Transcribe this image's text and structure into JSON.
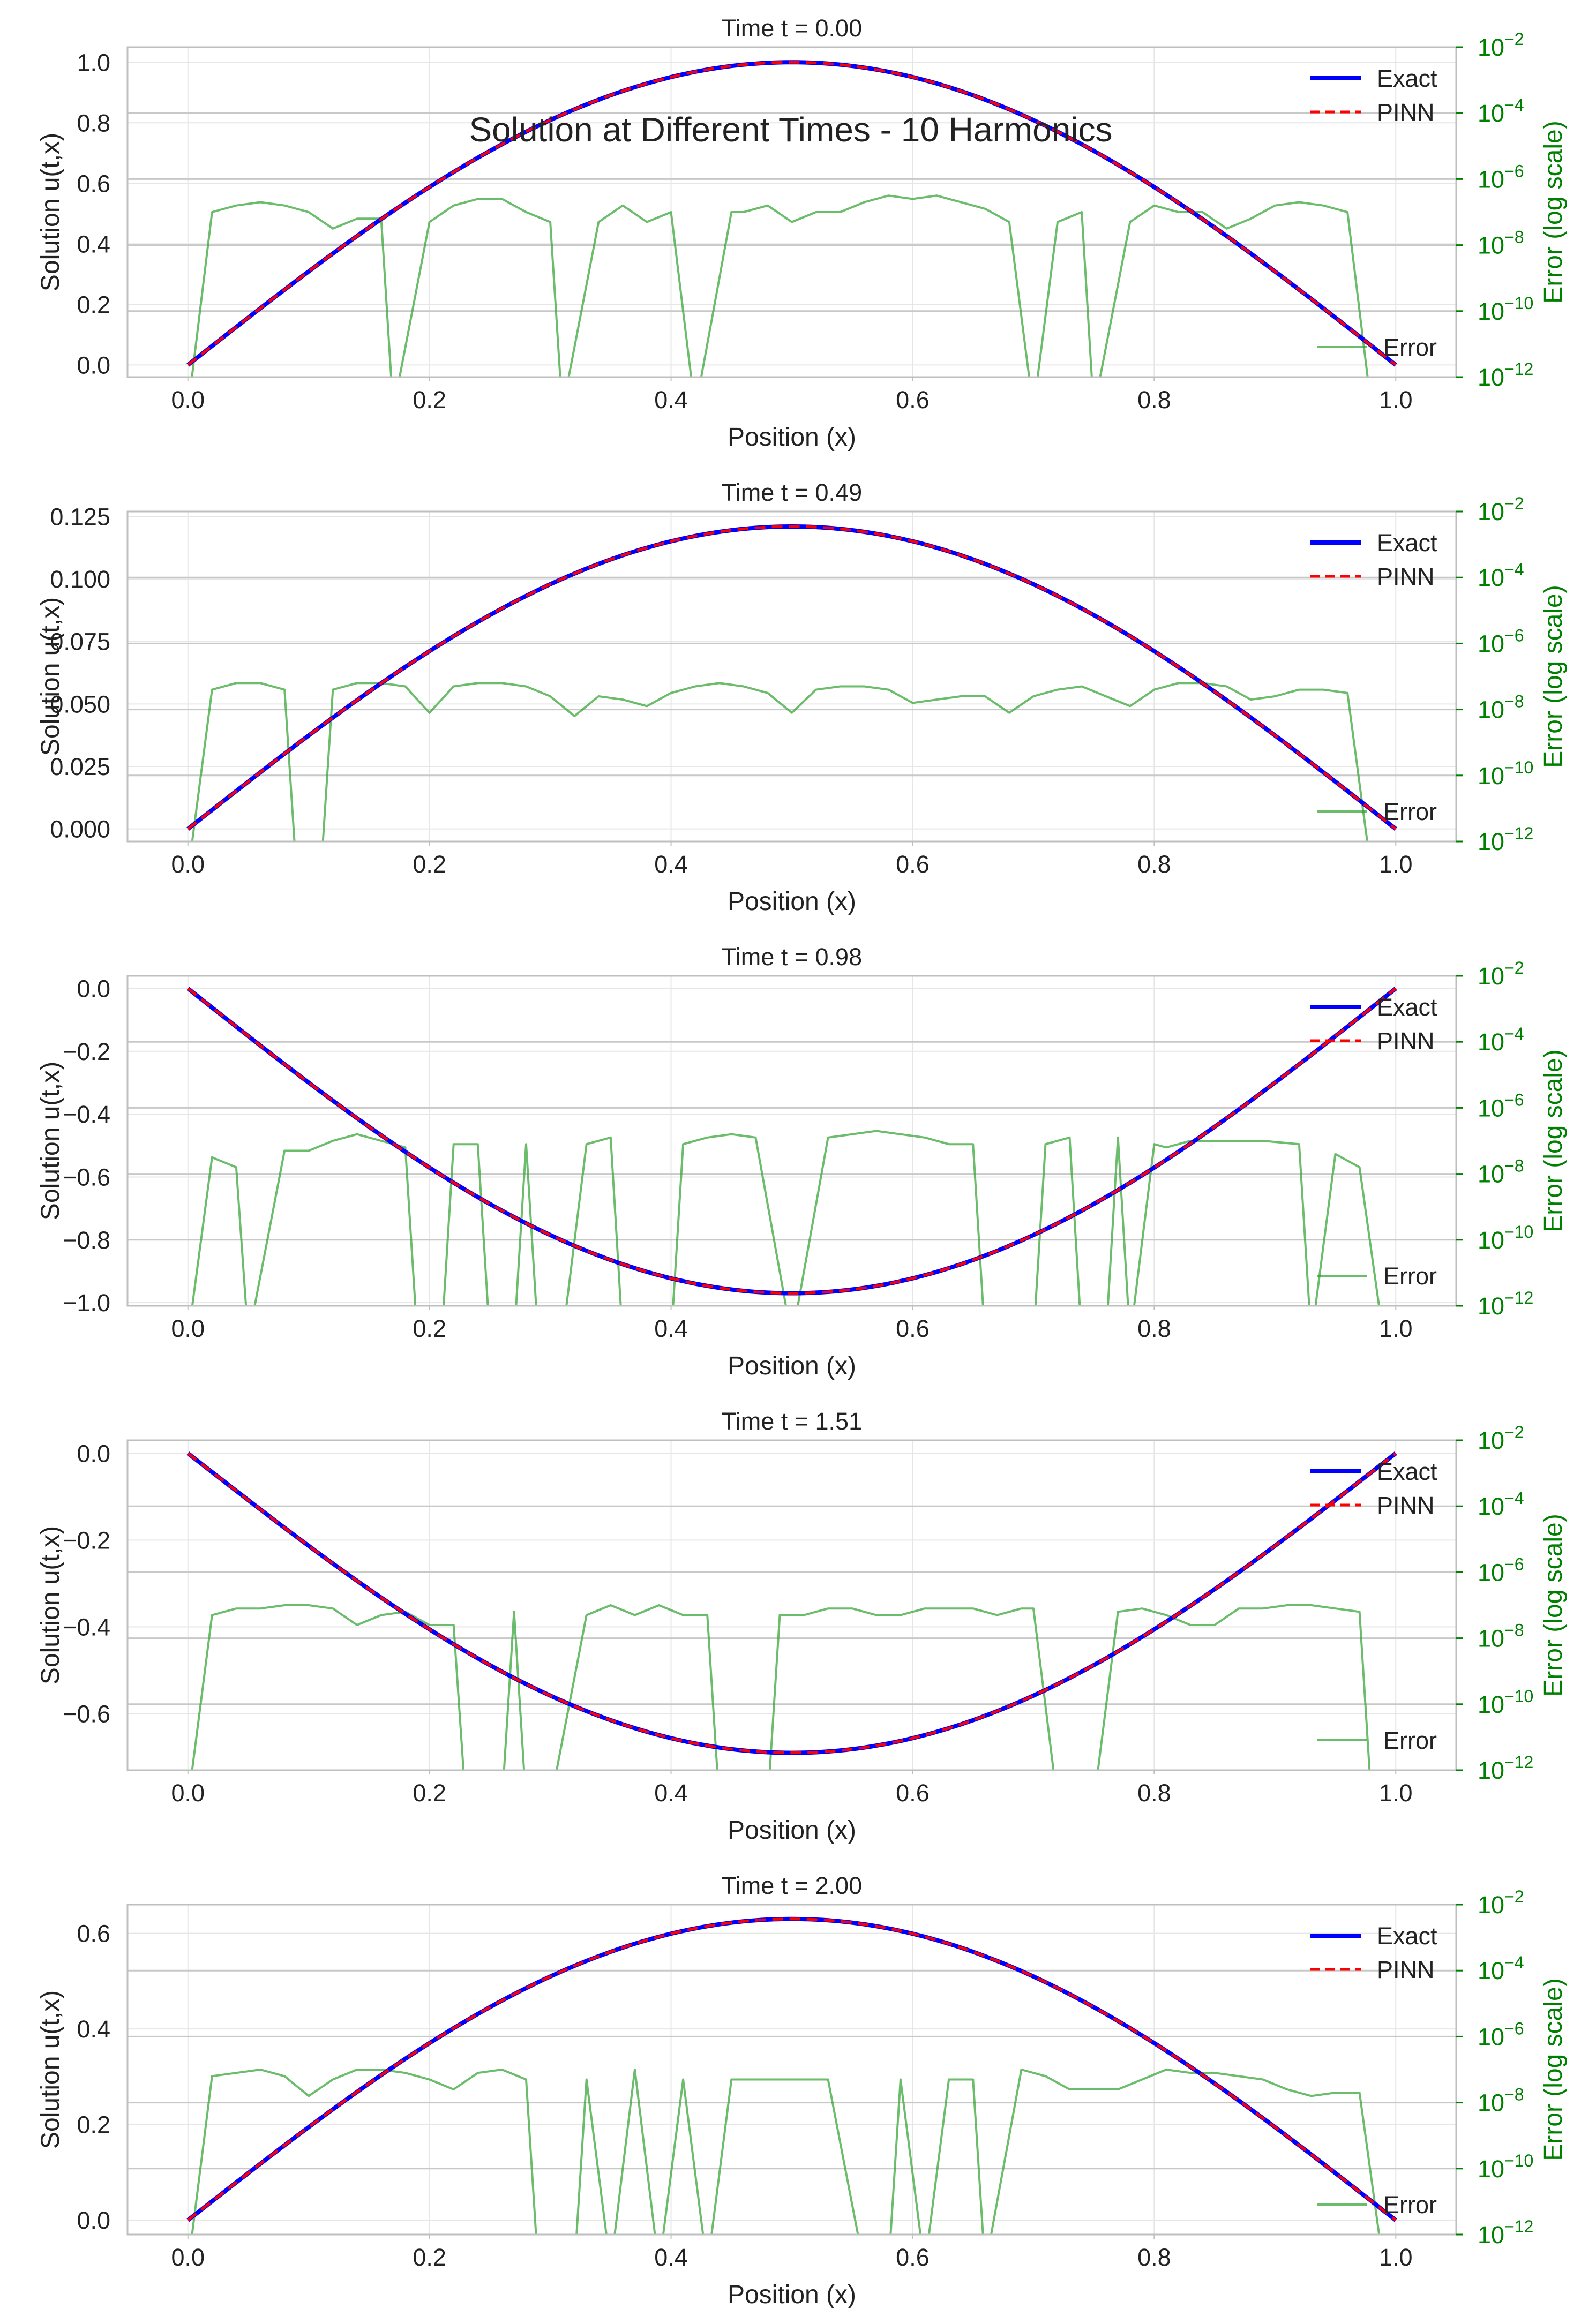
{
  "figure": {
    "suptitle": "Solution at Different Times - 10 Harmonics"
  },
  "colors": {
    "exact": "#0000ff",
    "pinn": "#ff0000",
    "error": "#2ca02c",
    "right_axis": "#008000",
    "grid": "#e6e6e6",
    "hgrid": "#c8c8c8",
    "frame": "#bfbfbf",
    "text": "#222222"
  },
  "legend": {
    "exact": "Exact",
    "pinn": "PINN",
    "error": "Error"
  },
  "chart_data": [
    {
      "type": "line",
      "title": "Time t = 0.00",
      "xlabel": "Position (x)",
      "ylabel": "Solution u(t,x)",
      "y2label": "Error (log scale)",
      "xlim": [
        -0.05,
        1.05
      ],
      "xticks": [
        "0.0",
        "0.2",
        "0.4",
        "0.6",
        "0.8",
        "1.0"
      ],
      "ylim": [
        -0.04,
        1.05
      ],
      "yticks": [
        0.0,
        0.2,
        0.4,
        0.6,
        0.8,
        1.0
      ],
      "ytick_labels": [
        "0.0",
        "0.2",
        "0.4",
        "0.6",
        "0.8",
        "1.0"
      ],
      "y2lim_exp": [
        -12,
        -2
      ],
      "y2ticks_exp": [
        -2,
        -4,
        -6,
        -8,
        -10,
        -12
      ],
      "grid": true,
      "legend_placement": "top-right (Exact, PINN), bottom-right (Error)",
      "series": [
        {
          "name": "Exact",
          "function": "A*sin(pi*x)",
          "amplitude": 1.0
        },
        {
          "name": "PINN",
          "function": "A*sin(pi*x)",
          "amplitude": 1.0,
          "style": "dashed"
        },
        {
          "name": "Error",
          "axis": "right",
          "x": [
            0.0,
            0.02,
            0.04,
            0.06,
            0.08,
            0.1,
            0.12,
            0.14,
            0.16,
            0.17,
            0.2,
            0.22,
            0.24,
            0.26,
            0.28,
            0.3,
            0.31,
            0.34,
            0.36,
            0.38,
            0.4,
            0.42,
            0.45,
            0.46,
            0.48,
            0.5,
            0.52,
            0.54,
            0.56,
            0.58,
            0.6,
            0.62,
            0.64,
            0.66,
            0.68,
            0.7,
            0.72,
            0.74,
            0.75,
            0.78,
            0.8,
            0.82,
            0.84,
            0.86,
            0.88,
            0.9,
            0.92,
            0.94,
            0.96,
            0.98,
            1.0
          ],
          "log10_error": [
            -13,
            -7.0,
            -6.8,
            -6.7,
            -6.8,
            -7.0,
            -7.5,
            -7.2,
            -7.2,
            -13,
            -7.3,
            -6.8,
            -6.6,
            -6.6,
            -7.0,
            -7.3,
            -13,
            -7.3,
            -6.8,
            -7.3,
            -7.0,
            -13,
            -7.0,
            -7.0,
            -6.8,
            -7.3,
            -7.0,
            -7.0,
            -6.7,
            -6.5,
            -6.6,
            -6.5,
            -6.7,
            -6.9,
            -7.3,
            -13,
            -7.3,
            -7.0,
            -13,
            -7.3,
            -6.8,
            -7.0,
            -7.0,
            -7.5,
            -7.2,
            -6.8,
            -6.7,
            -6.8,
            -7.0,
            -13,
            -13
          ]
        }
      ]
    },
    {
      "type": "line",
      "title": "Time t = 0.49",
      "xlabel": "Position (x)",
      "ylabel": "Solution u(t,x)",
      "y2label": "Error (log scale)",
      "xlim": [
        -0.05,
        1.05
      ],
      "xticks": [
        "0.0",
        "0.2",
        "0.4",
        "0.6",
        "0.8",
        "1.0"
      ],
      "ylim": [
        -0.005,
        0.127
      ],
      "yticks": [
        0.0,
        0.025,
        0.05,
        0.075,
        0.1,
        0.125
      ],
      "ytick_labels": [
        "0.000",
        "0.025",
        "0.050",
        "0.075",
        "0.100",
        "0.125"
      ],
      "y2lim_exp": [
        -12,
        -2
      ],
      "y2ticks_exp": [
        -2,
        -4,
        -6,
        -8,
        -10,
        -12
      ],
      "grid": true,
      "legend_placement": "top-right (Exact, PINN), bottom-right (Error)",
      "series": [
        {
          "name": "Exact",
          "function": "A*sin(pi*x)",
          "amplitude": 0.121
        },
        {
          "name": "PINN",
          "function": "A*sin(pi*x)",
          "amplitude": 0.121,
          "style": "dashed"
        },
        {
          "name": "Error",
          "axis": "right",
          "x": [
            0.0,
            0.02,
            0.04,
            0.06,
            0.08,
            0.09,
            0.11,
            0.12,
            0.14,
            0.16,
            0.18,
            0.2,
            0.22,
            0.24,
            0.26,
            0.28,
            0.3,
            0.32,
            0.34,
            0.36,
            0.38,
            0.4,
            0.42,
            0.44,
            0.46,
            0.48,
            0.5,
            0.52,
            0.54,
            0.56,
            0.58,
            0.6,
            0.62,
            0.64,
            0.66,
            0.68,
            0.7,
            0.72,
            0.74,
            0.76,
            0.78,
            0.8,
            0.82,
            0.84,
            0.86,
            0.88,
            0.9,
            0.92,
            0.94,
            0.96,
            0.98,
            1.0
          ],
          "log10_error": [
            -13,
            -7.4,
            -7.2,
            -7.2,
            -7.4,
            -13,
            -13,
            -7.4,
            -7.2,
            -7.2,
            -7.3,
            -8.1,
            -7.3,
            -7.2,
            -7.2,
            -7.3,
            -7.6,
            -8.2,
            -7.6,
            -7.7,
            -7.9,
            -7.5,
            -7.3,
            -7.2,
            -7.3,
            -7.5,
            -8.1,
            -7.4,
            -7.3,
            -7.3,
            -7.4,
            -7.8,
            -7.7,
            -7.6,
            -7.6,
            -8.1,
            -7.6,
            -7.4,
            -7.3,
            -7.6,
            -7.9,
            -7.4,
            -7.2,
            -7.2,
            -7.3,
            -7.7,
            -7.6,
            -7.4,
            -7.4,
            -7.5,
            -13,
            -13
          ]
        }
      ]
    },
    {
      "type": "line",
      "title": "Time t = 0.98",
      "xlabel": "Position (x)",
      "ylabel": "Solution u(t,x)",
      "y2label": "Error (log scale)",
      "xlim": [
        -0.05,
        1.05
      ],
      "xticks": [
        "0.0",
        "0.2",
        "0.4",
        "0.6",
        "0.8",
        "1.0"
      ],
      "ylim": [
        -1.01,
        0.04
      ],
      "yticks": [
        0.0,
        -0.2,
        -0.4,
        -0.6,
        -0.8,
        -1.0
      ],
      "ytick_labels": [
        "0.0",
        "−0.2",
        "−0.4",
        "−0.6",
        "−0.8",
        "−1.0"
      ],
      "y2lim_exp": [
        -12,
        -2
      ],
      "y2ticks_exp": [
        -2,
        -4,
        -6,
        -8,
        -10,
        -12
      ],
      "grid": true,
      "legend_placement": "top-right (Exact, PINN), bottom-right (Error)",
      "series": [
        {
          "name": "Exact",
          "function": "A*sin(pi*x)",
          "amplitude": -0.97
        },
        {
          "name": "PINN",
          "function": "A*sin(pi*x)",
          "amplitude": -0.97,
          "style": "dashed"
        },
        {
          "name": "Error",
          "axis": "right",
          "x": [
            0.0,
            0.02,
            0.04,
            0.05,
            0.08,
            0.1,
            0.12,
            0.14,
            0.16,
            0.18,
            0.19,
            0.21,
            0.22,
            0.24,
            0.25,
            0.27,
            0.28,
            0.29,
            0.31,
            0.33,
            0.35,
            0.36,
            0.4,
            0.41,
            0.43,
            0.45,
            0.47,
            0.5,
            0.53,
            0.55,
            0.57,
            0.59,
            0.61,
            0.63,
            0.65,
            0.66,
            0.7,
            0.71,
            0.73,
            0.74,
            0.76,
            0.77,
            0.78,
            0.8,
            0.81,
            0.83,
            0.85,
            0.87,
            0.89,
            0.92,
            0.93,
            0.95,
            0.97,
            0.99,
            1.0
          ],
          "log10_error": [
            -13,
            -7.5,
            -7.8,
            -13,
            -7.3,
            -7.3,
            -7.0,
            -6.8,
            -7.0,
            -7.2,
            -13,
            -13,
            -7.1,
            -7.1,
            -13,
            -13,
            -7.1,
            -13,
            -13,
            -7.1,
            -6.9,
            -13,
            -13,
            -7.1,
            -6.9,
            -6.8,
            -6.9,
            -13,
            -6.9,
            -6.8,
            -6.7,
            -6.8,
            -6.9,
            -7.1,
            -7.1,
            -13,
            -13,
            -7.1,
            -6.9,
            -13,
            -13,
            -6.9,
            -13,
            -7.1,
            -7.2,
            -7.0,
            -7.0,
            -7.0,
            -7.0,
            -7.1,
            -13,
            -7.4,
            -7.8,
            -13,
            -13
          ]
        }
      ]
    },
    {
      "type": "line",
      "title": "Time t = 1.51",
      "xlabel": "Position (x)",
      "ylabel": "Solution u(t,x)",
      "y2label": "Error (log scale)",
      "xlim": [
        -0.05,
        1.05
      ],
      "xticks": [
        "0.0",
        "0.2",
        "0.4",
        "0.6",
        "0.8",
        "1.0"
      ],
      "ylim": [
        -0.73,
        0.03
      ],
      "yticks": [
        0.0,
        -0.2,
        -0.4,
        -0.6
      ],
      "ytick_labels": [
        "0.0",
        "−0.2",
        "−0.4",
        "−0.6"
      ],
      "y2lim_exp": [
        -12,
        -2
      ],
      "y2ticks_exp": [
        -2,
        -4,
        -6,
        -8,
        -10,
        -12
      ],
      "grid": true,
      "legend_placement": "top-right (Exact, PINN), bottom-right (Error)",
      "series": [
        {
          "name": "Exact",
          "function": "A*sin(pi*x)",
          "amplitude": -0.69
        },
        {
          "name": "PINN",
          "function": "A*sin(pi*x)",
          "amplitude": -0.69,
          "style": "dashed"
        },
        {
          "name": "Error",
          "axis": "right",
          "x": [
            0.0,
            0.02,
            0.04,
            0.06,
            0.08,
            0.1,
            0.12,
            0.14,
            0.16,
            0.18,
            0.2,
            0.22,
            0.23,
            0.26,
            0.27,
            0.28,
            0.3,
            0.33,
            0.35,
            0.37,
            0.39,
            0.41,
            0.43,
            0.44,
            0.48,
            0.49,
            0.51,
            0.53,
            0.55,
            0.57,
            0.59,
            0.61,
            0.63,
            0.65,
            0.67,
            0.69,
            0.7,
            0.72,
            0.75,
            0.77,
            0.79,
            0.81,
            0.83,
            0.85,
            0.87,
            0.89,
            0.91,
            0.93,
            0.95,
            0.97,
            0.98,
            1.0
          ],
          "log10_error": [
            -13,
            -7.3,
            -7.1,
            -7.1,
            -7.0,
            -7.0,
            -7.1,
            -7.6,
            -7.3,
            -7.2,
            -7.6,
            -7.6,
            -13,
            -13,
            -7.2,
            -13,
            -13,
            -7.3,
            -7.0,
            -7.3,
            -7.0,
            -7.3,
            -7.3,
            -13,
            -13,
            -7.3,
            -7.3,
            -7.1,
            -7.1,
            -7.3,
            -7.3,
            -7.1,
            -7.1,
            -7.1,
            -7.3,
            -7.1,
            -7.1,
            -13,
            -13,
            -7.2,
            -7.1,
            -7.3,
            -7.6,
            -7.6,
            -7.1,
            -7.1,
            -7.0,
            -7.0,
            -7.1,
            -7.2,
            -13,
            -13
          ]
        }
      ]
    },
    {
      "type": "line",
      "title": "Time t = 2.00",
      "xlabel": "Position (x)",
      "ylabel": "Solution u(t,x)",
      "y2label": "Error (log scale)",
      "xlim": [
        -0.05,
        1.05
      ],
      "xticks": [
        "0.0",
        "0.2",
        "0.4",
        "0.6",
        "0.8",
        "1.0"
      ],
      "ylim": [
        -0.03,
        0.66
      ],
      "yticks": [
        0.0,
        0.2,
        0.4,
        0.6
      ],
      "ytick_labels": [
        "0.0",
        "0.2",
        "0.4",
        "0.6"
      ],
      "y2lim_exp": [
        -12,
        -2
      ],
      "y2ticks_exp": [
        -2,
        -4,
        -6,
        -8,
        -10,
        -12
      ],
      "grid": true,
      "legend_placement": "top-right (Exact, PINN), bottom-right (Error)",
      "series": [
        {
          "name": "Exact",
          "function": "A*sin(pi*x)",
          "amplitude": 0.63
        },
        {
          "name": "PINN",
          "function": "A*sin(pi*x)",
          "amplitude": 0.63,
          "style": "dashed"
        },
        {
          "name": "Error",
          "axis": "right",
          "x": [
            0.0,
            0.02,
            0.04,
            0.06,
            0.08,
            0.1,
            0.12,
            0.14,
            0.16,
            0.18,
            0.2,
            0.22,
            0.24,
            0.26,
            0.28,
            0.29,
            0.32,
            0.33,
            0.35,
            0.37,
            0.39,
            0.41,
            0.43,
            0.45,
            0.53,
            0.56,
            0.58,
            0.59,
            0.61,
            0.63,
            0.65,
            0.66,
            0.69,
            0.71,
            0.73,
            0.77,
            0.81,
            0.83,
            0.85,
            0.87,
            0.89,
            0.91,
            0.93,
            0.95,
            0.97,
            0.99,
            1.0
          ],
          "log10_error": [
            -13,
            -7.2,
            -7.1,
            -7.0,
            -7.2,
            -7.8,
            -7.3,
            -7.0,
            -7.0,
            -7.1,
            -7.3,
            -7.6,
            -7.1,
            -7.0,
            -7.3,
            -13,
            -13,
            -7.3,
            -13,
            -7.0,
            -13,
            -7.3,
            -13,
            -7.3,
            -7.3,
            -13,
            -13,
            -7.3,
            -13,
            -7.3,
            -7.3,
            -13,
            -7.0,
            -7.2,
            -7.6,
            -7.6,
            -7.0,
            -7.1,
            -7.1,
            -7.2,
            -7.3,
            -7.6,
            -7.8,
            -7.7,
            -7.7,
            -13,
            -13
          ]
        }
      ]
    }
  ]
}
